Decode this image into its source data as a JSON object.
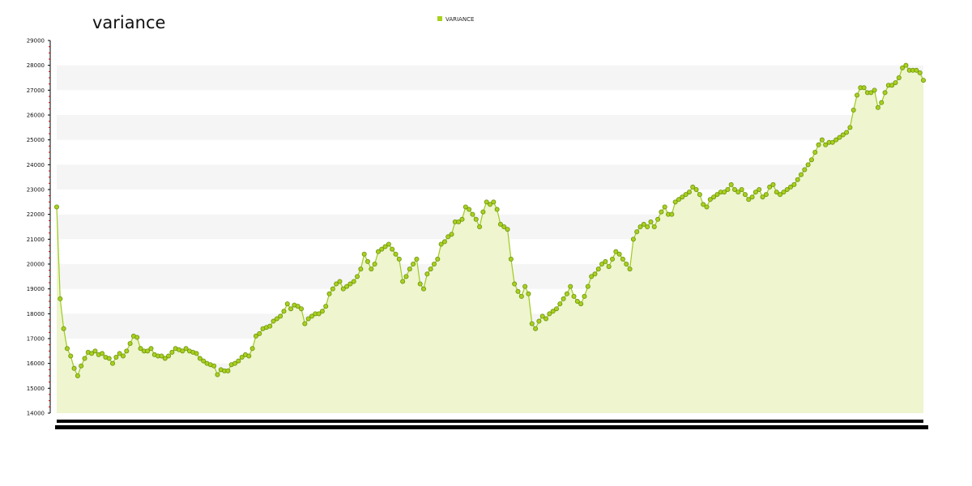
{
  "chart_data": {
    "type": "area",
    "title": "variance",
    "legend": {
      "position": "top-center",
      "entries": [
        "VARIANCE"
      ]
    },
    "series": [
      {
        "name": "VARIANCE",
        "color": "#9ecb1c",
        "fill": "#eef5cf",
        "values": [
          22300,
          18600,
          17400,
          16600,
          16300,
          15800,
          15500,
          15900,
          16200,
          16450,
          16400,
          16500,
          16350,
          16400,
          16250,
          16200,
          16000,
          16250,
          16400,
          16300,
          16500,
          16800,
          17100,
          17050,
          16600,
          16500,
          16500,
          16600,
          16350,
          16300,
          16300,
          16200,
          16300,
          16450,
          16600,
          16550,
          16500,
          16600,
          16500,
          16450,
          16400,
          16200,
          16100,
          16000,
          15950,
          15900,
          15550,
          15750,
          15700,
          15700,
          15950,
          16000,
          16100,
          16250,
          16350,
          16300,
          16600,
          17100,
          17200,
          17400,
          17450,
          17500,
          17700,
          17800,
          17900,
          18100,
          18400,
          18200,
          18350,
          18300,
          18200,
          17600,
          17800,
          17900,
          18000,
          18000,
          18100,
          18300,
          18800,
          19000,
          19200,
          19300,
          19000,
          19100,
          19200,
          19300,
          19500,
          19800,
          20400,
          20100,
          19800,
          20000,
          20500,
          20600,
          20700,
          20800,
          20600,
          20400,
          20200,
          19300,
          19500,
          19800,
          20000,
          20200,
          19200,
          19000,
          19600,
          19800,
          20000,
          20200,
          20800,
          20900,
          21100,
          21200,
          21700,
          21700,
          21800,
          22300,
          22200,
          22000,
          21800,
          21500,
          22100,
          22500,
          22400,
          22500,
          22200,
          21600,
          21500,
          21400,
          20200,
          19200,
          18900,
          18700,
          19100,
          18800,
          17600,
          17400,
          17700,
          17900,
          17800,
          18000,
          18100,
          18200,
          18400,
          18600,
          18800,
          19100,
          18700,
          18500,
          18400,
          18700,
          19100,
          19500,
          19600,
          19800,
          20000,
          20100,
          19900,
          20200,
          20500,
          20400,
          20200,
          20000,
          19800,
          21000,
          21300,
          21500,
          21600,
          21500,
          21700,
          21500,
          21800,
          22100,
          22300,
          22000,
          22000,
          22500,
          22600,
          22700,
          22800,
          22900,
          23100,
          23000,
          22800,
          22400,
          22300,
          22600,
          22700,
          22800,
          22900,
          22900,
          23000,
          23200,
          23000,
          22900,
          23000,
          22800,
          22600,
          22700,
          22900,
          23000,
          22700,
          22800,
          23100,
          23200,
          22900,
          22800,
          22900,
          23000,
          23100,
          23200,
          23400,
          23600,
          23800,
          24000,
          24200,
          24500,
          24800,
          25000,
          24800,
          24900,
          24900,
          25000,
          25100,
          25200,
          25300,
          25500,
          26200,
          26800,
          27100,
          27100,
          26900,
          26900,
          27000,
          26300,
          26500,
          26900,
          27200,
          27200,
          27300,
          27500,
          27900,
          28000,
          27800,
          27800,
          27800,
          27700,
          27400
        ]
      }
    ],
    "xlabel": "",
    "ylabel": "",
    "ylim": [
      14000,
      29000
    ],
    "yticks": [
      "14000",
      "15000",
      "16000",
      "17000",
      "18000",
      "19000",
      "20000",
      "21000",
      "22000",
      "23000",
      "24000",
      "25000",
      "26000",
      "27000",
      "28000",
      "29000"
    ],
    "grid": "horizontal alternating bands",
    "colors": {
      "line": "#9ecb1c",
      "marker": "#a8d01e",
      "marker_stroke": "#6f9410",
      "area": "#eef5cf",
      "axis": "#000000",
      "band": "#f5f5f5",
      "tick": "#cc0000"
    }
  }
}
